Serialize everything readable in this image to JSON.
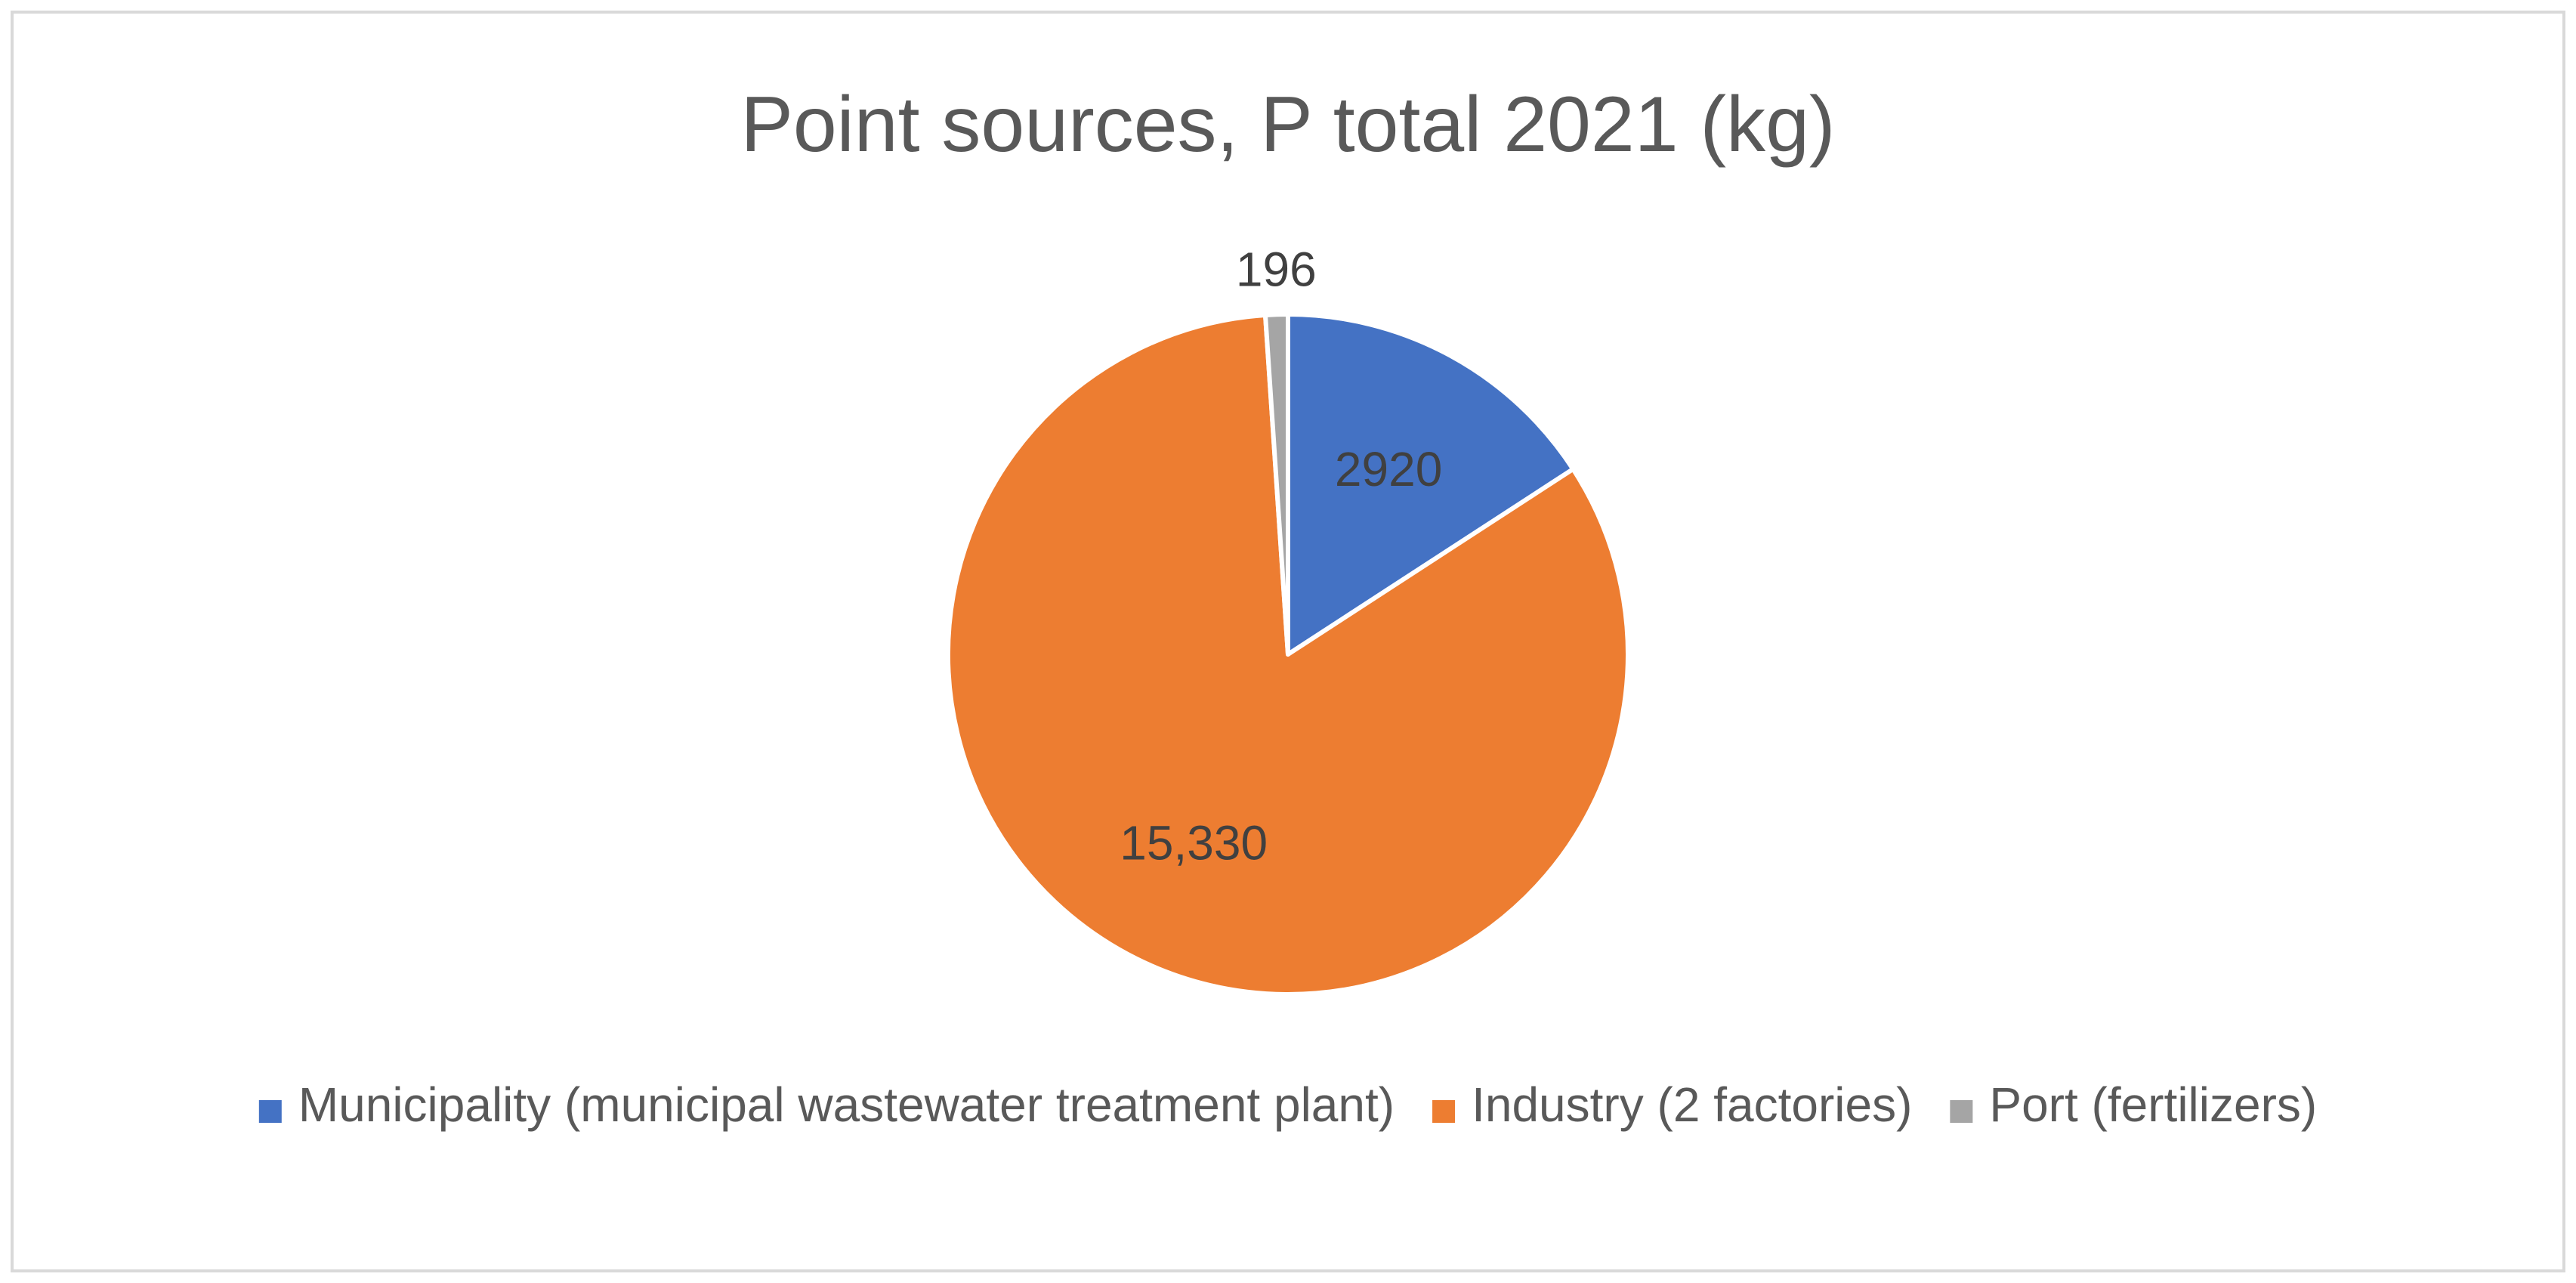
{
  "chart_data": {
    "type": "pie",
    "title": "Point sources, P total 2021 (kg)",
    "categories": [
      "Municipality (municipal wastewater treatment plant)",
      "Industry (2 factories)",
      "Port (fertilizers)"
    ],
    "values": [
      2920,
      15330,
      196
    ],
    "data_labels": [
      "2920",
      "15,330",
      "196"
    ],
    "colors": [
      "#4472c4",
      "#ed7d31",
      "#a5a5a5"
    ],
    "start_angle_deg": 0,
    "direction": "clockwise",
    "legend_position": "bottom",
    "slice_border_color": "#ffffff"
  }
}
